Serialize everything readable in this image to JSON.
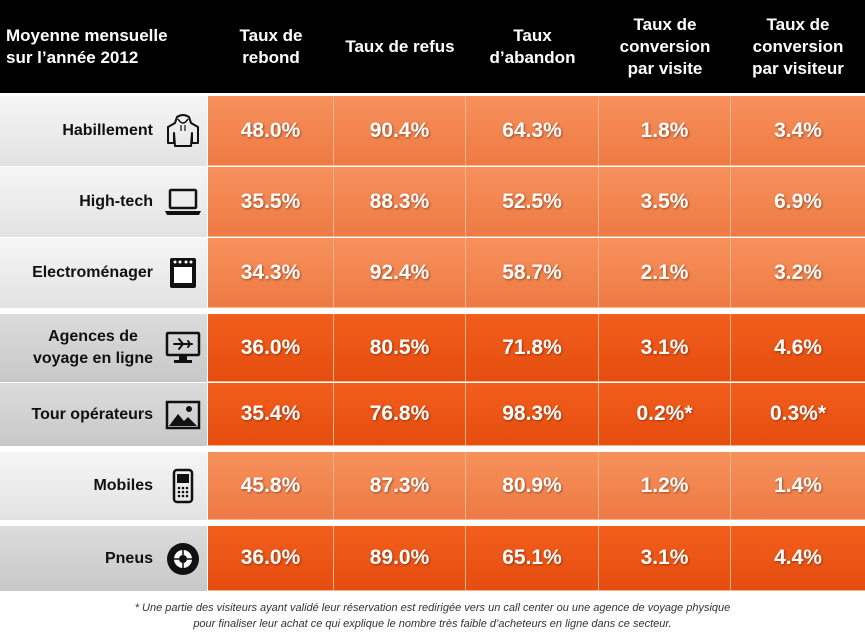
{
  "header": {
    "first_col": "Moyenne mensuelle\nsur l’année 2012",
    "columns": [
      "Taux de\nrebond",
      "Taux de refus",
      "Taux\nd’abandon",
      "Taux de\nconversion\npar visite",
      "Taux de\nconversion\npar visiteur"
    ]
  },
  "chart_data": {
    "type": "table",
    "title": "Moyenne mensuelle sur l’année 2012",
    "columns": [
      "Taux de rebond",
      "Taux de refus",
      "Taux d’abandon",
      "Taux de conversion par visite",
      "Taux de conversion par visiteur"
    ],
    "rows": [
      {
        "label": "Habillement",
        "icon": "hoodie-icon",
        "group": "a",
        "values": [
          "48.0%",
          "90.4%",
          "64.3%",
          "1.8%",
          "3.4%"
        ]
      },
      {
        "label": "High-tech",
        "icon": "laptop-icon",
        "group": "a",
        "values": [
          "35.5%",
          "88.3%",
          "52.5%",
          "3.5%",
          "6.9%"
        ]
      },
      {
        "label": "Electroménager",
        "icon": "oven-icon",
        "group": "a",
        "values": [
          "34.3%",
          "92.4%",
          "58.7%",
          "2.1%",
          "3.2%"
        ]
      },
      {
        "label": "Agences de\nvoyage en ligne",
        "icon": "airplane-monitor-icon",
        "group": "b",
        "values": [
          "36.0%",
          "80.5%",
          "71.8%",
          "3.1%",
          "4.6%"
        ]
      },
      {
        "label": "Tour opérateurs",
        "icon": "landscape-picture-icon",
        "group": "b",
        "values": [
          "35.4%",
          "76.8%",
          "98.3%",
          "0.2%*",
          "0.3%*"
        ]
      },
      {
        "label": "Mobiles",
        "icon": "mobile-phone-icon",
        "group": "a",
        "values": [
          "45.8%",
          "87.3%",
          "80.9%",
          "1.2%",
          "1.4%"
        ]
      },
      {
        "label": "Pneus",
        "icon": "tire-icon",
        "group": "b",
        "values": [
          "36.0%",
          "89.0%",
          "65.1%",
          "3.1%",
          "4.4%"
        ]
      }
    ]
  },
  "colors": {
    "header_bg": "#000000",
    "light_orange": "#f08450",
    "dark_orange": "#ec5818"
  },
  "footnote": "* Une partie des visiteurs ayant validé leur réservation est redirigée vers un call center ou une agence de voyage physique\npour finaliser leur achat ce qui explique le nombre très faible d’acheteurs en ligne dans ce secteur."
}
